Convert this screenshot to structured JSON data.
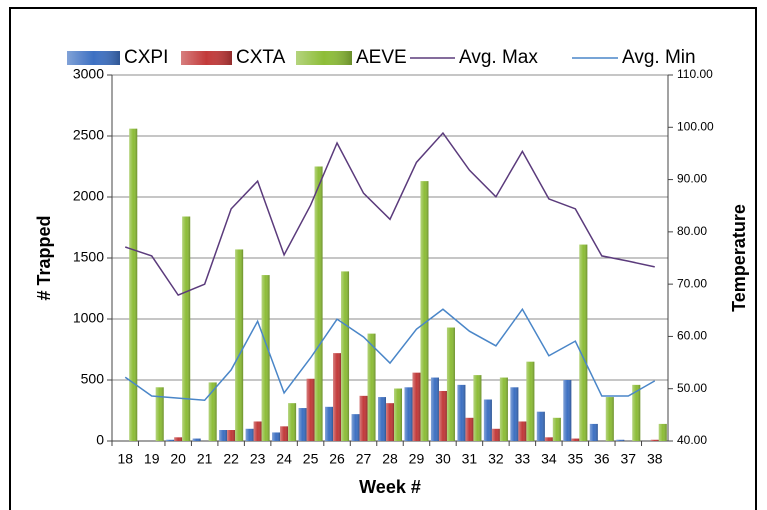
{
  "chart_data": {
    "type": "combo",
    "x_label": "Week #",
    "y_label": "# Trapped",
    "y2_label": "Temperature",
    "categories": [
      "18",
      "19",
      "20",
      "21",
      "22",
      "23",
      "24",
      "25",
      "26",
      "27",
      "28",
      "29",
      "30",
      "31",
      "32",
      "33",
      "34",
      "35",
      "36",
      "37",
      "38"
    ],
    "ylim": [
      0,
      3000
    ],
    "yticks": [
      0,
      500,
      1000,
      1500,
      2000,
      2500,
      3000
    ],
    "y2lim": [
      40,
      110
    ],
    "y2ticks": [
      {
        "value": 40,
        "label": "40.00"
      },
      {
        "value": 50,
        "label": "50.00"
      },
      {
        "value": 60,
        "label": "60.00"
      },
      {
        "value": 70,
        "label": "70.00"
      },
      {
        "value": 80,
        "label": "80.00"
      },
      {
        "value": 90,
        "label": "90.00"
      },
      {
        "value": 100,
        "label": "100.00"
      },
      {
        "value": 110,
        "label": "110.00"
      }
    ],
    "grid": true,
    "series": [
      {
        "name": "CXPI",
        "type": "bar",
        "color": "#3d70c2",
        "values": [
          0,
          0,
          10,
          20,
          90,
          100,
          70,
          270,
          280,
          220,
          360,
          440,
          520,
          460,
          340,
          440,
          240,
          500,
          140,
          10,
          0
        ]
      },
      {
        "name": "CXTA",
        "type": "bar",
        "color": "#c23a3a",
        "values": [
          0,
          0,
          30,
          0,
          90,
          160,
          120,
          510,
          720,
          370,
          310,
          560,
          410,
          190,
          100,
          160,
          30,
          20,
          0,
          0,
          10
        ]
      },
      {
        "name": "AEVE",
        "type": "bar",
        "color": "#8dbd38",
        "values": [
          2560,
          440,
          1840,
          480,
          1570,
          1360,
          310,
          2250,
          1390,
          880,
          430,
          2130,
          930,
          540,
          520,
          650,
          190,
          1610,
          360,
          460,
          140
        ]
      },
      {
        "name": "Avg. Max",
        "type": "line",
        "axis": "y2",
        "color": "#5b3b7c",
        "values": [
          77.1,
          75.4,
          67.9,
          70.0,
          84.4,
          89.7,
          75.6,
          85.1,
          97.0,
          87.4,
          82.4,
          93.3,
          98.9,
          91.8,
          86.7,
          95.4,
          86.3,
          84.4,
          75.4,
          74.4,
          73.3
        ]
      },
      {
        "name": "Avg. Min",
        "type": "line",
        "axis": "y2",
        "color": "#4a86c8",
        "values": [
          52.2,
          48.6,
          48.2,
          47.8,
          53.6,
          62.9,
          49.2,
          55.9,
          63.3,
          59.9,
          54.9,
          61.4,
          65.2,
          61.0,
          58.2,
          65.2,
          56.3,
          59.1,
          48.6,
          48.6,
          51.5
        ]
      }
    ]
  }
}
